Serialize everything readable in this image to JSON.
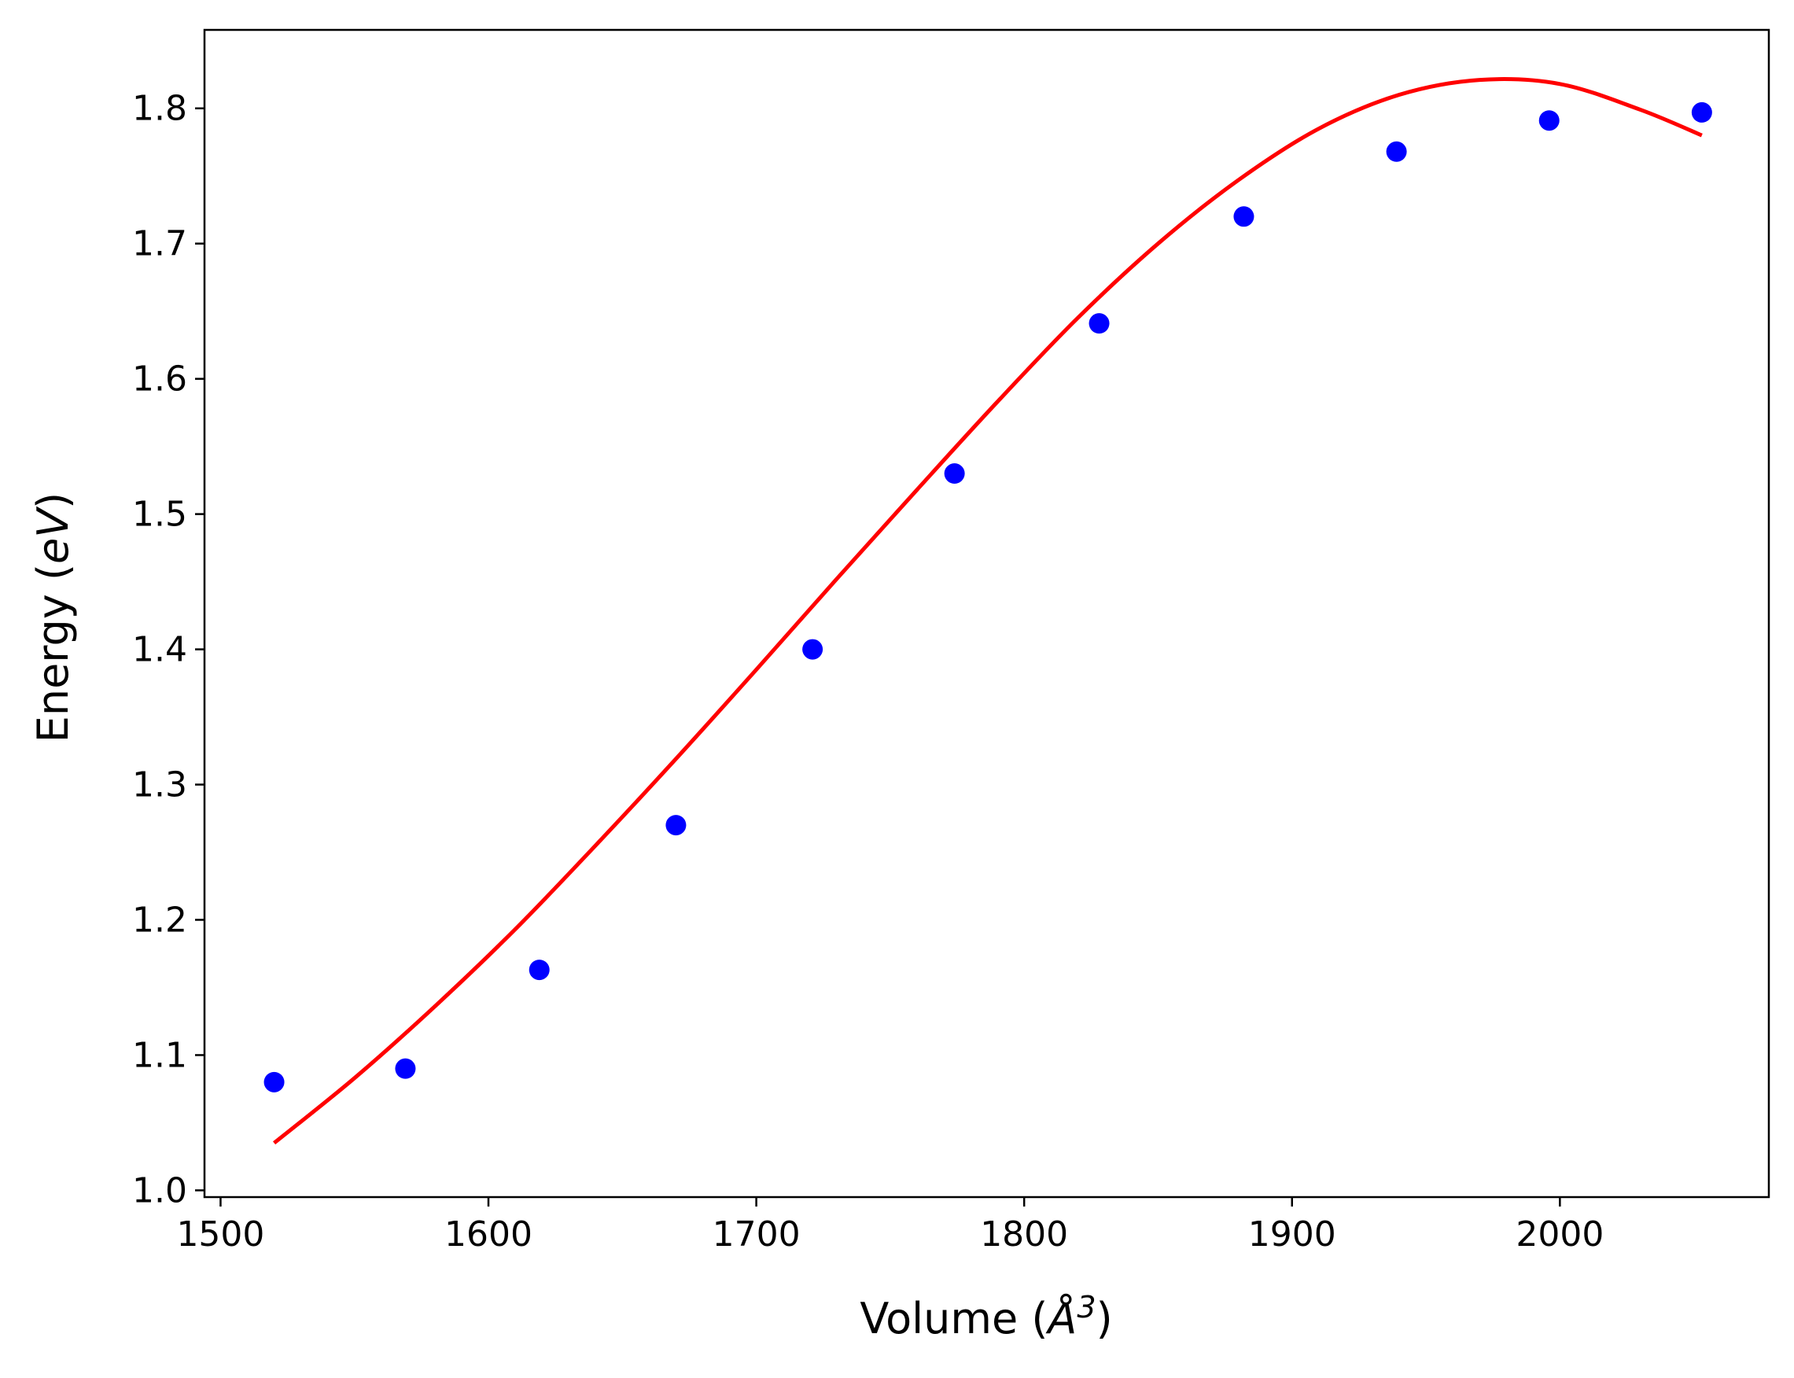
{
  "chart_data": {
    "type": "scatter",
    "title": "",
    "xlabel": "Volume (",
    "xlabel_symbol": "Å",
    "xlabel_sup": "3",
    "xlabel_close": ")",
    "ylabel": "Energy (",
    "ylabel_unit": "eV",
    "ylabel_close": ")",
    "xlim": [
      1494,
      2078
    ],
    "ylim": [
      0.995,
      1.858
    ],
    "x_ticks": [
      1500,
      1600,
      1700,
      1800,
      1900,
      2000
    ],
    "x_tick_labels": [
      "1500",
      "1600",
      "1700",
      "1800",
      "1900",
      "2000"
    ],
    "y_ticks": [
      1.0,
      1.1,
      1.2,
      1.3,
      1.4,
      1.5,
      1.6,
      1.7,
      1.8
    ],
    "y_tick_labels": [
      "1.0",
      "1.1",
      "1.2",
      "1.3",
      "1.4",
      "1.5",
      "1.6",
      "1.7",
      "1.8"
    ],
    "grid": false,
    "legend": "none",
    "series": [
      {
        "kind": "points",
        "color": "#0000ff",
        "x": [
          1520,
          1569,
          1619,
          1670,
          1721,
          1774,
          1828,
          1882,
          1939,
          1996,
          2053
        ],
        "y": [
          1.08,
          1.09,
          1.163,
          1.27,
          1.4,
          1.53,
          1.641,
          1.72,
          1.768,
          1.791,
          1.797
        ]
      },
      {
        "kind": "fit-line",
        "color": "#ff0000",
        "x": [
          1520,
          1550,
          1580,
          1610,
          1640,
          1670,
          1700,
          1730,
          1760,
          1790,
          1820,
          1850,
          1880,
          1910,
          1940,
          1970,
          2000,
          2030,
          2053
        ],
        "y": [
          1.035,
          1.083,
          1.136,
          1.193,
          1.255,
          1.319,
          1.385,
          1.452,
          1.518,
          1.583,
          1.645,
          1.7,
          1.747,
          1.785,
          1.81,
          1.821,
          1.818,
          1.799,
          1.78
        ]
      }
    ]
  }
}
